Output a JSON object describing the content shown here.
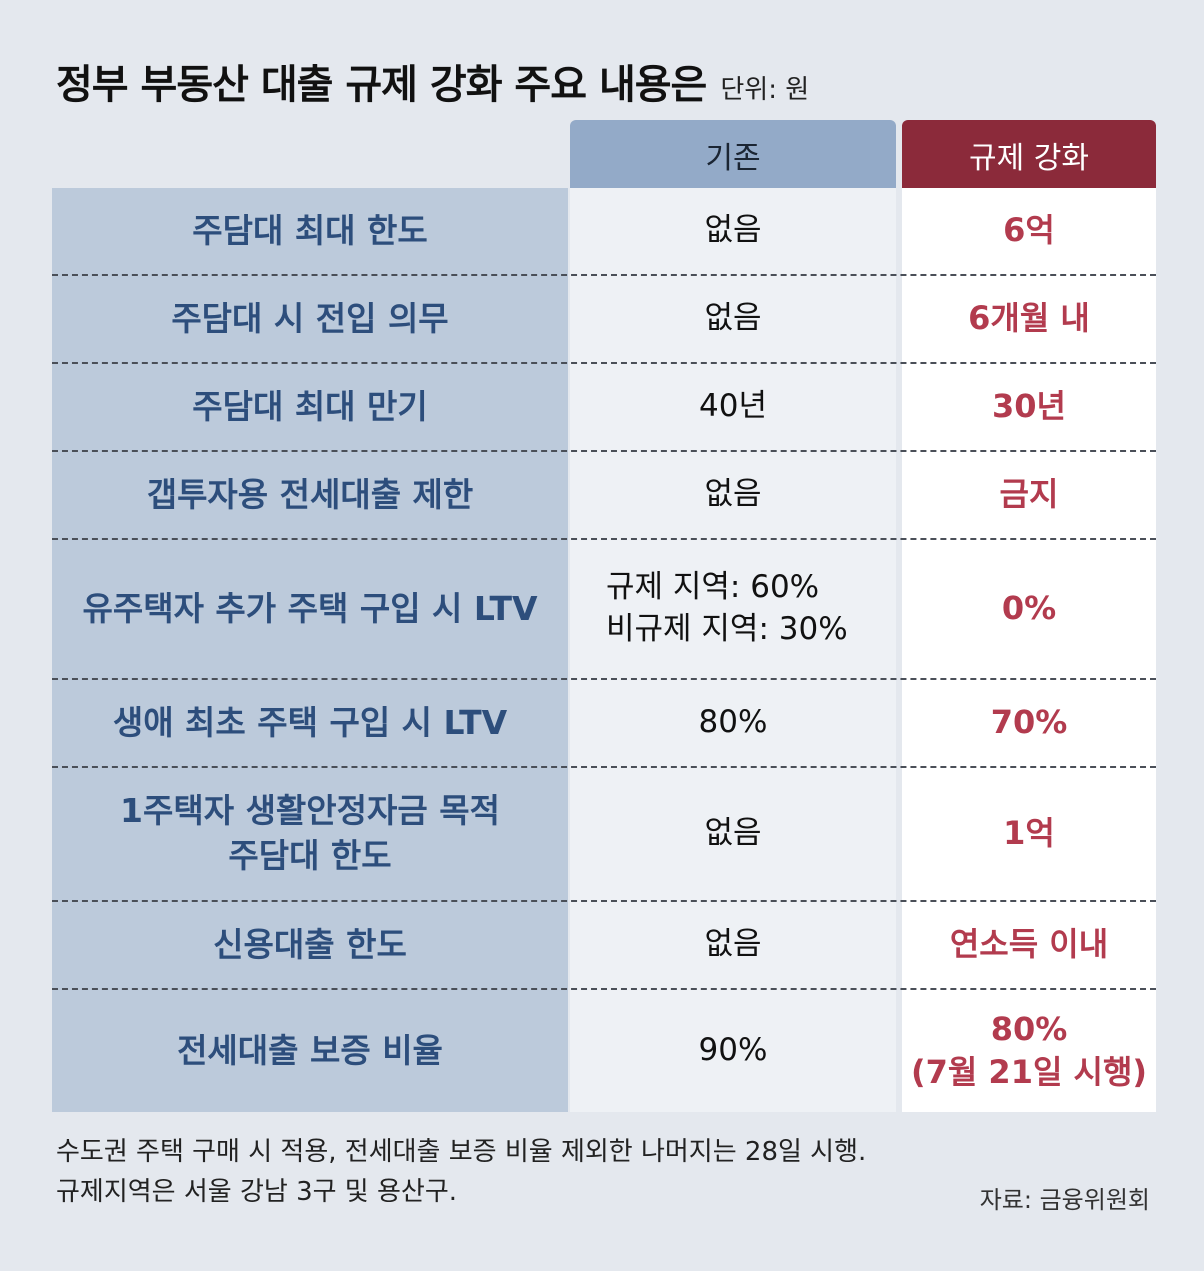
{
  "header": {
    "title": "정부 부동산 대출 규제 강화 주요 내용은",
    "unit": "단위: 원"
  },
  "columns": {
    "before": "기존",
    "after": "규제 강화"
  },
  "rows": [
    {
      "label": [
        "주담대 최대 한도"
      ],
      "before": [
        "없음"
      ],
      "after": [
        "6억"
      ]
    },
    {
      "label": [
        "주담대 시 전입 의무"
      ],
      "before": [
        "없음"
      ],
      "after": [
        "6개월 내"
      ]
    },
    {
      "label": [
        "주담대 최대 만기"
      ],
      "before": [
        "40년"
      ],
      "after": [
        "30년"
      ]
    },
    {
      "label": [
        "갭투자용 전세대출 제한"
      ],
      "before": [
        "없음"
      ],
      "after": [
        "금지"
      ]
    },
    {
      "label": [
        "유주택자 추가 주택 구입 시 LTV"
      ],
      "before": [
        "규제 지역: 60%",
        "비규제 지역: 30%"
      ],
      "after": [
        "0%"
      ]
    },
    {
      "label": [
        "생애 최초 주택 구입 시 LTV"
      ],
      "before": [
        "80%"
      ],
      "after": [
        "70%"
      ]
    },
    {
      "label": [
        "1주택자 생활안정자금 목적",
        "주담대 한도"
      ],
      "before": [
        "없음"
      ],
      "after": [
        "1억"
      ]
    },
    {
      "label": [
        "신용대출 한도"
      ],
      "before": [
        "없음"
      ],
      "after": [
        "연소득 이내"
      ]
    },
    {
      "label": [
        "전세대출 보증 비율"
      ],
      "before": [
        "90%"
      ],
      "after": [
        "80%",
        "(7월 21일 시행)"
      ]
    }
  ],
  "footnotes": [
    "수도권 주택 구매 시 적용, 전세대출 보증 비율 제외한 나머지는 28일 시행.",
    "규제지역은 서울 강남 3구 및 용산구."
  ],
  "source": "자료: 금융위원회",
  "colors": {
    "label_bg": "#bccadb",
    "label_text": "#2d4e7c",
    "before_header": "#93aac8",
    "after_header": "#8b2a3a",
    "after_text": "#b23b4e"
  }
}
